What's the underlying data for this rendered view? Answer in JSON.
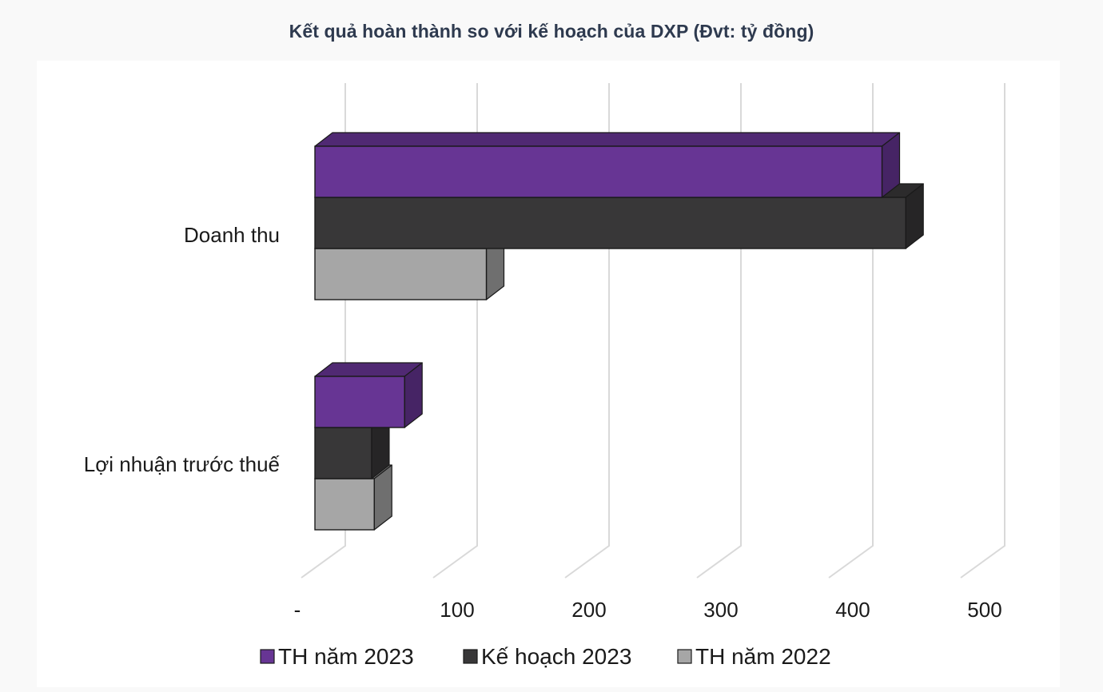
{
  "chart_data": {
    "type": "bar",
    "orientation": "horizontal",
    "style": "3d",
    "title": "Kết quả hoàn thành so với kế hoạch của DXP (Đvt: tỷ đồng)",
    "categories": [
      "Doanh thu",
      "Lợi nhuận trước thuế"
    ],
    "series": [
      {
        "name": "TH năm 2023",
        "color": "#673594",
        "values": [
          430,
          68
        ]
      },
      {
        "name": "Kế hoạch 2023",
        "color": "#383738",
        "values": [
          448,
          43
        ]
      },
      {
        "name": "TH năm 2022",
        "color": "#a6a6a6",
        "values": [
          130,
          45
        ]
      }
    ],
    "xlim": [
      0,
      500
    ],
    "xticks": [
      0,
      100,
      200,
      300,
      400,
      500
    ],
    "xtick_labels": [
      "-",
      "100",
      "200",
      "300",
      "400",
      "500"
    ],
    "xlabel": "",
    "ylabel": "",
    "grid": true,
    "legend_position": "bottom"
  }
}
